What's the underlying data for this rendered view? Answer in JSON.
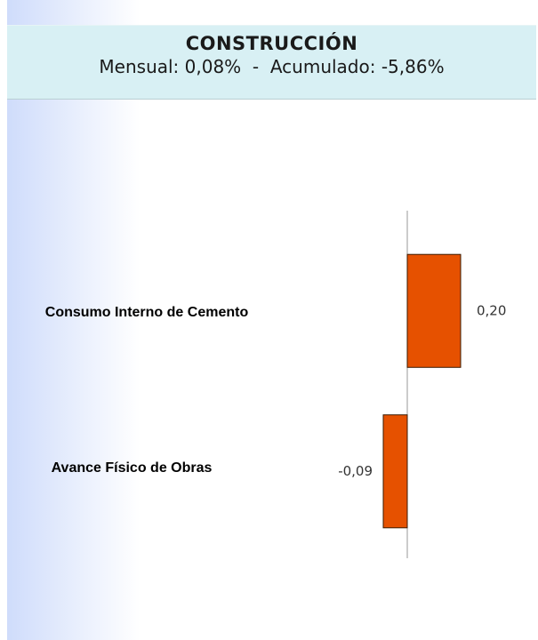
{
  "chart_data": {
    "type": "bar",
    "orientation": "horizontal",
    "title": "CONSTRUCCIÓN",
    "subtitle": "Mensual: 0,08%  -  Acumulado: -5,86%",
    "categories": [
      "Consumo Interno de Cemento",
      "Avance Físico de Obras"
    ],
    "values": [
      0.2,
      -0.09
    ],
    "value_labels": [
      "0,20",
      "-0,09"
    ],
    "color": "#e65100"
  }
}
